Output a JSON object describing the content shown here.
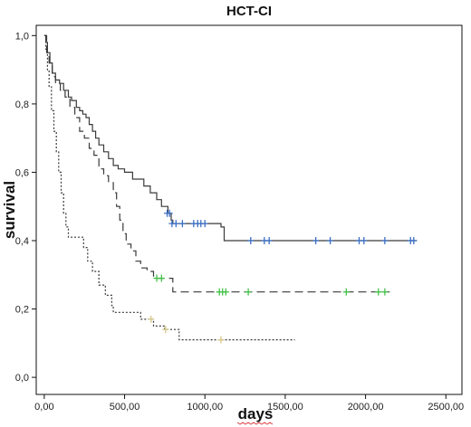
{
  "chart_data": {
    "type": "line",
    "title": "HCT-CI",
    "xlabel": "days",
    "ylabel": "survival",
    "xlim": [
      -50,
      2600
    ],
    "ylim": [
      -0.05,
      1.03
    ],
    "x_ticks": [
      0,
      500,
      1000,
      1500,
      2000,
      2500
    ],
    "x_tick_labels": [
      "0,00",
      "500,00",
      "1000,00",
      "1500,00",
      "2000,00",
      "2500,00"
    ],
    "y_ticks": [
      0,
      0.2,
      0.4,
      0.6,
      0.8,
      1.0
    ],
    "y_tick_labels": [
      "0,0",
      "0,2",
      "0,4",
      "0,6",
      "0,8",
      "1,0"
    ],
    "grid": false,
    "series": [
      {
        "style": "solid",
        "color": "#3a3a3a",
        "censor_color": "#3b6fc4",
        "steps": [
          [
            0,
            1.0
          ],
          [
            10,
            0.98
          ],
          [
            20,
            0.95
          ],
          [
            35,
            0.92
          ],
          [
            50,
            0.89
          ],
          [
            70,
            0.87
          ],
          [
            95,
            0.86
          ],
          [
            120,
            0.84
          ],
          [
            150,
            0.82
          ],
          [
            170,
            0.81
          ],
          [
            200,
            0.79
          ],
          [
            220,
            0.78
          ],
          [
            240,
            0.77
          ],
          [
            260,
            0.76
          ],
          [
            280,
            0.74
          ],
          [
            300,
            0.72
          ],
          [
            320,
            0.7
          ],
          [
            340,
            0.68
          ],
          [
            370,
            0.66
          ],
          [
            400,
            0.64
          ],
          [
            430,
            0.62
          ],
          [
            460,
            0.61
          ],
          [
            500,
            0.6
          ],
          [
            550,
            0.58
          ],
          [
            620,
            0.56
          ],
          [
            660,
            0.54
          ],
          [
            700,
            0.52
          ],
          [
            730,
            0.5
          ],
          [
            770,
            0.48
          ],
          [
            790,
            0.46
          ],
          [
            800,
            0.45
          ],
          [
            1100,
            0.44
          ],
          [
            1120,
            0.4
          ],
          [
            2320,
            0.4
          ]
        ],
        "censored": [
          [
            765,
            0.48
          ],
          [
            780,
            0.48
          ],
          [
            795,
            0.45
          ],
          [
            820,
            0.45
          ],
          [
            860,
            0.45
          ],
          [
            930,
            0.45
          ],
          [
            955,
            0.45
          ],
          [
            975,
            0.45
          ],
          [
            1000,
            0.45
          ],
          [
            1285,
            0.4
          ],
          [
            1370,
            0.4
          ],
          [
            1400,
            0.4
          ],
          [
            1690,
            0.4
          ],
          [
            1780,
            0.4
          ],
          [
            1960,
            0.4
          ],
          [
            1990,
            0.4
          ],
          [
            2120,
            0.4
          ],
          [
            2280,
            0.4
          ],
          [
            2300,
            0.4
          ]
        ]
      },
      {
        "style": "dashed",
        "color": "#3a3a3a",
        "censor_color": "#45c24a",
        "steps": [
          [
            0,
            1.0
          ],
          [
            15,
            0.95
          ],
          [
            30,
            0.92
          ],
          [
            50,
            0.88
          ],
          [
            70,
            0.86
          ],
          [
            100,
            0.84
          ],
          [
            130,
            0.82
          ],
          [
            160,
            0.79
          ],
          [
            190,
            0.76
          ],
          [
            220,
            0.72
          ],
          [
            250,
            0.7
          ],
          [
            280,
            0.67
          ],
          [
            310,
            0.65
          ],
          [
            340,
            0.61
          ],
          [
            370,
            0.59
          ],
          [
            400,
            0.57
          ],
          [
            430,
            0.54
          ],
          [
            450,
            0.5
          ],
          [
            470,
            0.46
          ],
          [
            490,
            0.42
          ],
          [
            510,
            0.39
          ],
          [
            540,
            0.37
          ],
          [
            570,
            0.34
          ],
          [
            600,
            0.32
          ],
          [
            640,
            0.31
          ],
          [
            680,
            0.29
          ],
          [
            800,
            0.25
          ],
          [
            2150,
            0.25
          ]
        ],
        "censored": [
          [
            700,
            0.29
          ],
          [
            730,
            0.29
          ],
          [
            1090,
            0.25
          ],
          [
            1110,
            0.25
          ],
          [
            1130,
            0.25
          ],
          [
            1270,
            0.25
          ],
          [
            1880,
            0.25
          ],
          [
            2080,
            0.25
          ],
          [
            2120,
            0.25
          ]
        ]
      },
      {
        "style": "dotted",
        "color": "#3a3a3a",
        "censor_color": "#d6c98a",
        "steps": [
          [
            0,
            1.0
          ],
          [
            10,
            0.96
          ],
          [
            20,
            0.9
          ],
          [
            30,
            0.85
          ],
          [
            45,
            0.78
          ],
          [
            60,
            0.72
          ],
          [
            75,
            0.66
          ],
          [
            90,
            0.6
          ],
          [
            105,
            0.54
          ],
          [
            120,
            0.48
          ],
          [
            135,
            0.44
          ],
          [
            150,
            0.41
          ],
          [
            245,
            0.38
          ],
          [
            270,
            0.34
          ],
          [
            300,
            0.31
          ],
          [
            340,
            0.27
          ],
          [
            380,
            0.24
          ],
          [
            420,
            0.21
          ],
          [
            430,
            0.19
          ],
          [
            600,
            0.17
          ],
          [
            680,
            0.15
          ],
          [
            750,
            0.14
          ],
          [
            840,
            0.11
          ],
          [
            1560,
            0.11
          ]
        ],
        "censored": [
          [
            665,
            0.17
          ],
          [
            755,
            0.14
          ],
          [
            1100,
            0.11
          ]
        ]
      }
    ]
  }
}
